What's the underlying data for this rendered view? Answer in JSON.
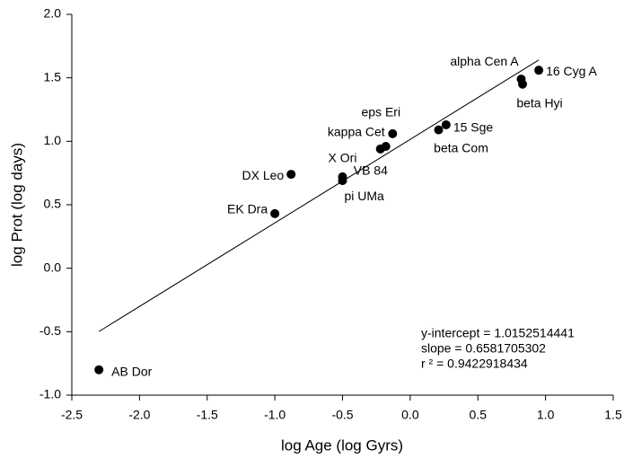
{
  "chart_data": {
    "type": "scatter",
    "x_label": "log Age (log Gyrs)",
    "y_label": "log Prot (log days)",
    "x": [
      -2.3,
      -1.0,
      -0.88,
      -0.5,
      -0.5,
      -0.18,
      -0.22,
      -0.13,
      0.21,
      0.265,
      0.82,
      0.83,
      0.95
    ],
    "values": [
      -0.8,
      0.43,
      0.74,
      0.72,
      0.69,
      0.96,
      0.94,
      1.06,
      1.09,
      1.13,
      1.49,
      1.45,
      1.56
    ],
    "point_labels": [
      "AB Dor",
      "EK Dra",
      "DX Leo",
      "X Ori",
      "pi UMa",
      "VB 84",
      "kappa Cet",
      "eps Eri",
      "beta Com",
      "15 Sge",
      "alpha Cen A",
      "beta Hyi",
      "16 Cyg A"
    ],
    "color": "#000000",
    "fit": {
      "intercept": {
        "value": 1.0152514441,
        "label": "y-intercept = 1.0152514441"
      },
      "slope": {
        "value": 0.6581705302,
        "label": "slope = 0.6581705302"
      },
      "r2": {
        "value": 0.9422918434,
        "label": "r ² = 0.9422918434"
      }
    },
    "xlim": [
      -2.5,
      1.5
    ],
    "ylim": [
      -1.0,
      2.0
    ],
    "xticks": [
      {
        "value": -2.5,
        "label": "-2.5"
      },
      {
        "value": -2.0,
        "label": "-2.0"
      },
      {
        "value": -1.5,
        "label": "-1.5"
      },
      {
        "value": -1.0,
        "label": "-1.0"
      },
      {
        "value": -0.5,
        "label": "-0.5"
      },
      {
        "value": 0,
        "label": "0.0"
      },
      {
        "value": 0.5,
        "label": "0.5"
      },
      {
        "value": 1.0,
        "label": "1.0"
      },
      {
        "value": 1.5,
        "label": "1.5"
      }
    ],
    "yticks": [
      {
        "value": -1.0,
        "label": "-1.0"
      },
      {
        "value": -0.5,
        "label": "-0.5"
      },
      {
        "value": 0,
        "label": "0.0"
      },
      {
        "value": 0.5,
        "label": "0.5"
      },
      {
        "value": 1.0,
        "label": "1.0"
      },
      {
        "value": 1.5,
        "label": "1.5"
      },
      {
        "value": 2.0,
        "label": "2.0"
      }
    ]
  }
}
